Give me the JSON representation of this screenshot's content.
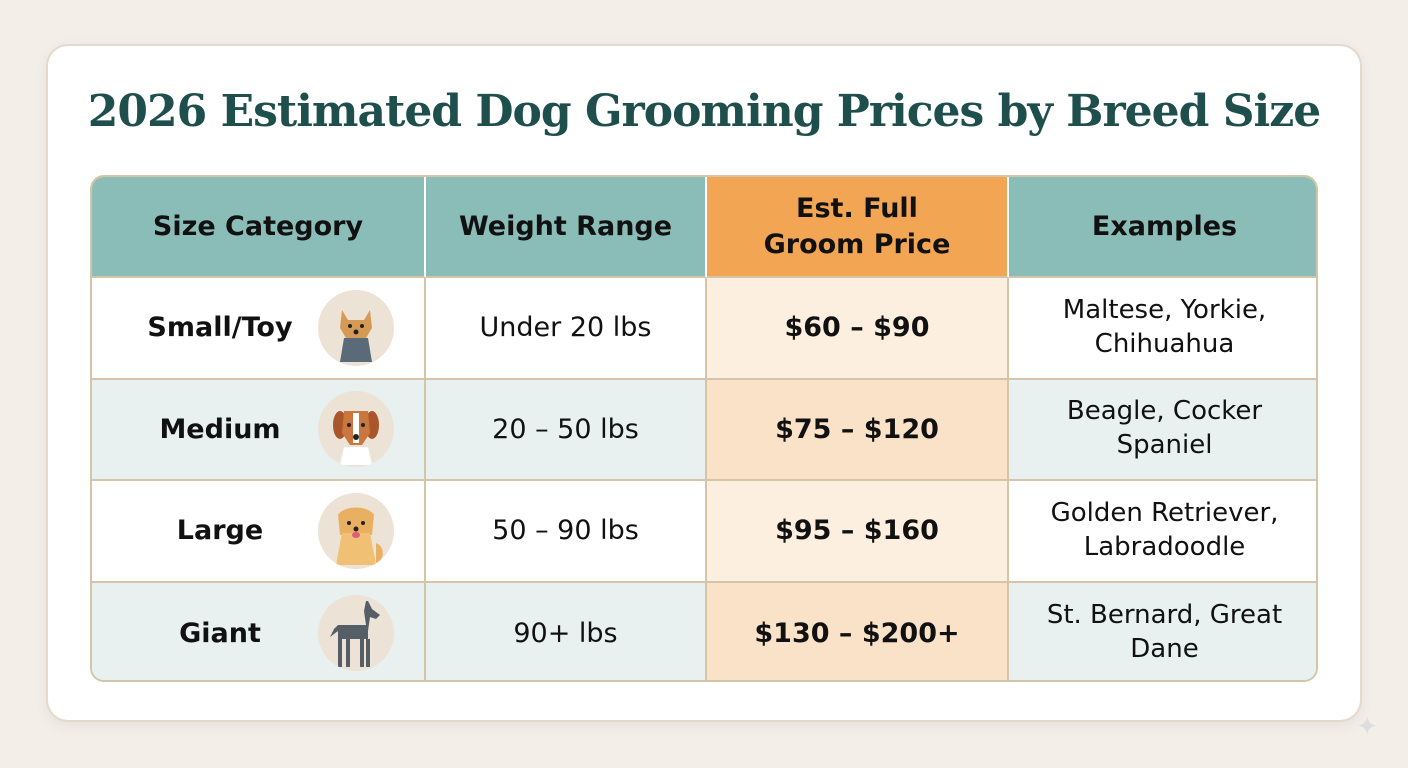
{
  "title": "2026 Estimated Dog Grooming Prices by Breed Size",
  "headers": [
    "Size Category",
    "Weight Range",
    "Est. Full Groom Price",
    "Examples"
  ],
  "rows": [
    {
      "size": "Small/Toy",
      "weight": "Under 20 lbs",
      "price": "$60 – $90",
      "examples": "Maltese, Yorkie, Chihuahua",
      "icon": "yorkie-icon"
    },
    {
      "size": "Medium",
      "weight": "20 – 50 lbs",
      "price": "$75 – $120",
      "examples": "Beagle, Cocker Spaniel",
      "icon": "beagle-icon"
    },
    {
      "size": "Large",
      "weight": "50 – 90 lbs",
      "price": "$95 – $160",
      "examples": "Golden Retriever, Labradoodle",
      "icon": "golden-retriever-icon"
    },
    {
      "size": "Giant",
      "weight": "90+ lbs",
      "price": "$130 – $200+",
      "examples": "St. Bernard, Great Dane",
      "icon": "great-dane-icon"
    }
  ],
  "colors": {
    "header": "#8bbdb8",
    "price_header": "#f2a552",
    "title": "#1f4f4c"
  }
}
